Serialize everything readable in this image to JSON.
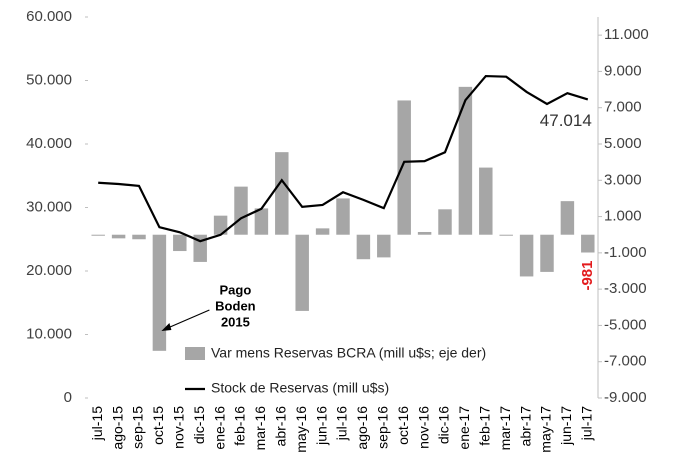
{
  "chart_data": {
    "type": "bar_line",
    "categories": [
      "jul-15",
      "ago-15",
      "sep-15",
      "oct-15",
      "nov-15",
      "dic-15",
      "ene-16",
      "feb-16",
      "mar-16",
      "abr-16",
      "may-16",
      "jun-16",
      "jul-16",
      "ago-16",
      "sep-16",
      "oct-16",
      "nov-16",
      "dic-16",
      "ene-17",
      "feb-17",
      "mar-17",
      "abr-17",
      "may-17",
      "jun-17",
      "jul-17"
    ],
    "series": [
      {
        "name": "Var mens Reservas BCRA (mill u$s; eje der)",
        "type": "bar",
        "axis": "y2",
        "color": "#a6a6a6",
        "values": [
          -50,
          -200,
          -250,
          -6400,
          -900,
          -1500,
          1050,
          2650,
          1450,
          4550,
          -4200,
          350,
          2000,
          -1350,
          -1250,
          7400,
          150,
          1400,
          8150,
          3700,
          -50,
          -2300,
          -2050,
          1850,
          -981
        ],
        "value_labels": [
          null,
          null,
          null,
          null,
          null,
          null,
          null,
          null,
          null,
          null,
          null,
          null,
          null,
          null,
          null,
          null,
          null,
          null,
          null,
          null,
          null,
          null,
          null,
          null,
          "-981"
        ],
        "value_label_color": "#e31a1c"
      },
      {
        "name": "Stock de Reservas (mill u$s)",
        "type": "line",
        "axis": "y",
        "color": "#000000",
        "values": [
          33900,
          33700,
          33400,
          26900,
          26100,
          24700,
          25700,
          28300,
          29800,
          34300,
          30100,
          30400,
          32400,
          31200,
          29900,
          37200,
          37300,
          38700,
          46900,
          50700,
          50600,
          48200,
          46300,
          48000,
          47014
        ],
        "value_labels": [
          null,
          null,
          null,
          null,
          null,
          null,
          null,
          null,
          null,
          null,
          null,
          null,
          null,
          null,
          null,
          null,
          null,
          null,
          null,
          null,
          null,
          null,
          null,
          null,
          "47.014"
        ]
      }
    ],
    "ylim": [
      0,
      60000
    ],
    "yticks": [
      {
        "value": 0,
        "label": "0"
      },
      {
        "value": 10000,
        "label": "10.000"
      },
      {
        "value": 20000,
        "label": "20.000"
      },
      {
        "value": 30000,
        "label": "30.000"
      },
      {
        "value": 40000,
        "label": "40.000"
      },
      {
        "value": 50000,
        "label": "50.000"
      },
      {
        "value": 60000,
        "label": "60.000"
      }
    ],
    "y2lim": [
      -9000,
      12000
    ],
    "y2ticks": [
      {
        "value": -9000,
        "label": "-9.000"
      },
      {
        "value": -7000,
        "label": "-7.000"
      },
      {
        "value": -5000,
        "label": "-5.000"
      },
      {
        "value": -3000,
        "label": "-3.000"
      },
      {
        "value": -1000,
        "label": "-1.000"
      },
      {
        "value": 1000,
        "label": "1.000"
      },
      {
        "value": 3000,
        "label": "3.000"
      },
      {
        "value": 5000,
        "label": "5.000"
      },
      {
        "value": 7000,
        "label": "7.000"
      },
      {
        "value": 9000,
        "label": "9.000"
      },
      {
        "value": 11000,
        "label": "11.000"
      }
    ],
    "annotation": {
      "lines": [
        "Pago",
        "Boden",
        "2015"
      ],
      "category_index": 3
    },
    "grid": false
  }
}
